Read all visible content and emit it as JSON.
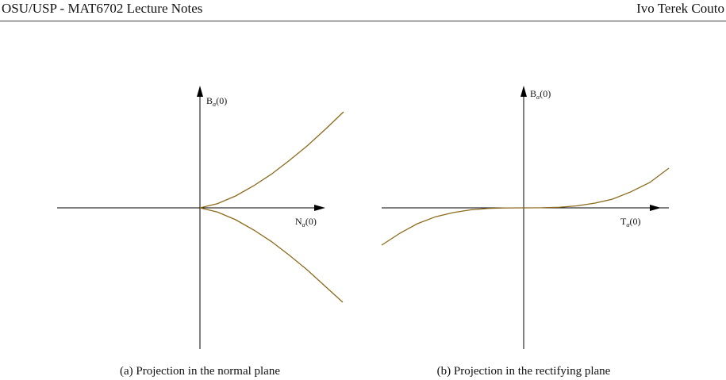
{
  "header": {
    "left": "OSU/USP - MAT6702 Lecture Notes",
    "right": "Ivo Terek Couto"
  },
  "figures": [
    {
      "vertical_label": {
        "letter": "B",
        "subscript": "α",
        "arg": "(0)"
      },
      "horizontal_label": {
        "letter": "N",
        "subscript": "α",
        "arg": "(0)"
      },
      "caption": "(a) Projection in the normal plane"
    },
    {
      "vertical_label": {
        "letter": "B",
        "subscript": "α",
        "arg": "(0)"
      },
      "horizontal_label": {
        "letter": "T",
        "subscript": "α",
        "arg": "(0)"
      },
      "caption": "(b) Projection in the rectifying plane"
    }
  ]
}
